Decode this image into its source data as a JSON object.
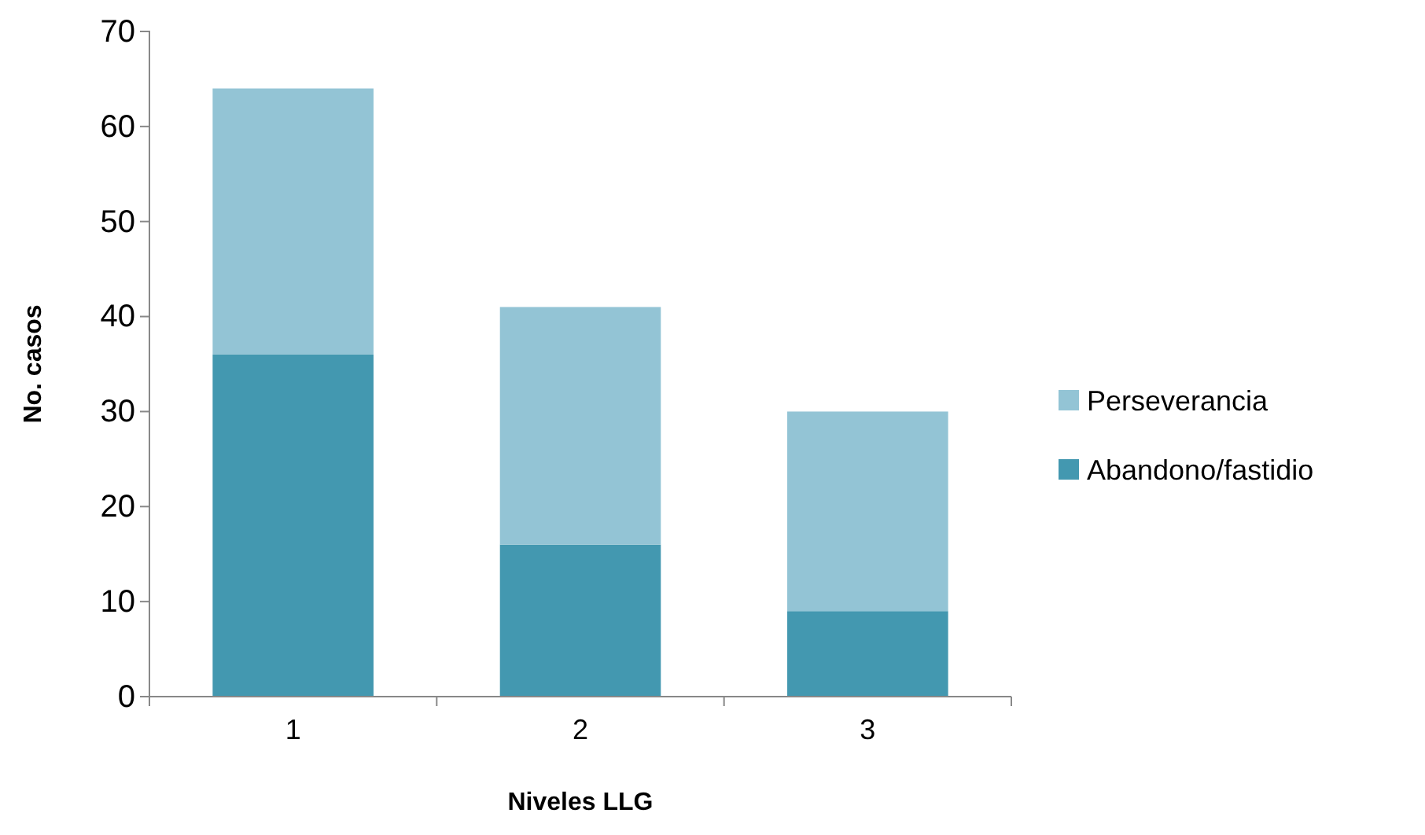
{
  "chart_data": {
    "type": "bar",
    "stacked": true,
    "xlabel": "Niveles LLG",
    "ylabel": "No. casos",
    "categories": [
      "1",
      "2",
      "3"
    ],
    "series": [
      {
        "name": "Abandono/fastidio",
        "color": "#4398b0",
        "values": [
          36,
          16,
          9
        ]
      },
      {
        "name": "Perseverancia",
        "color": "#93c4d5",
        "values": [
          28,
          25,
          21
        ]
      }
    ],
    "ylim": [
      0,
      70
    ],
    "yticks": [
      0,
      10,
      20,
      30,
      40,
      50,
      60,
      70
    ],
    "grid": false,
    "legend": "right"
  }
}
